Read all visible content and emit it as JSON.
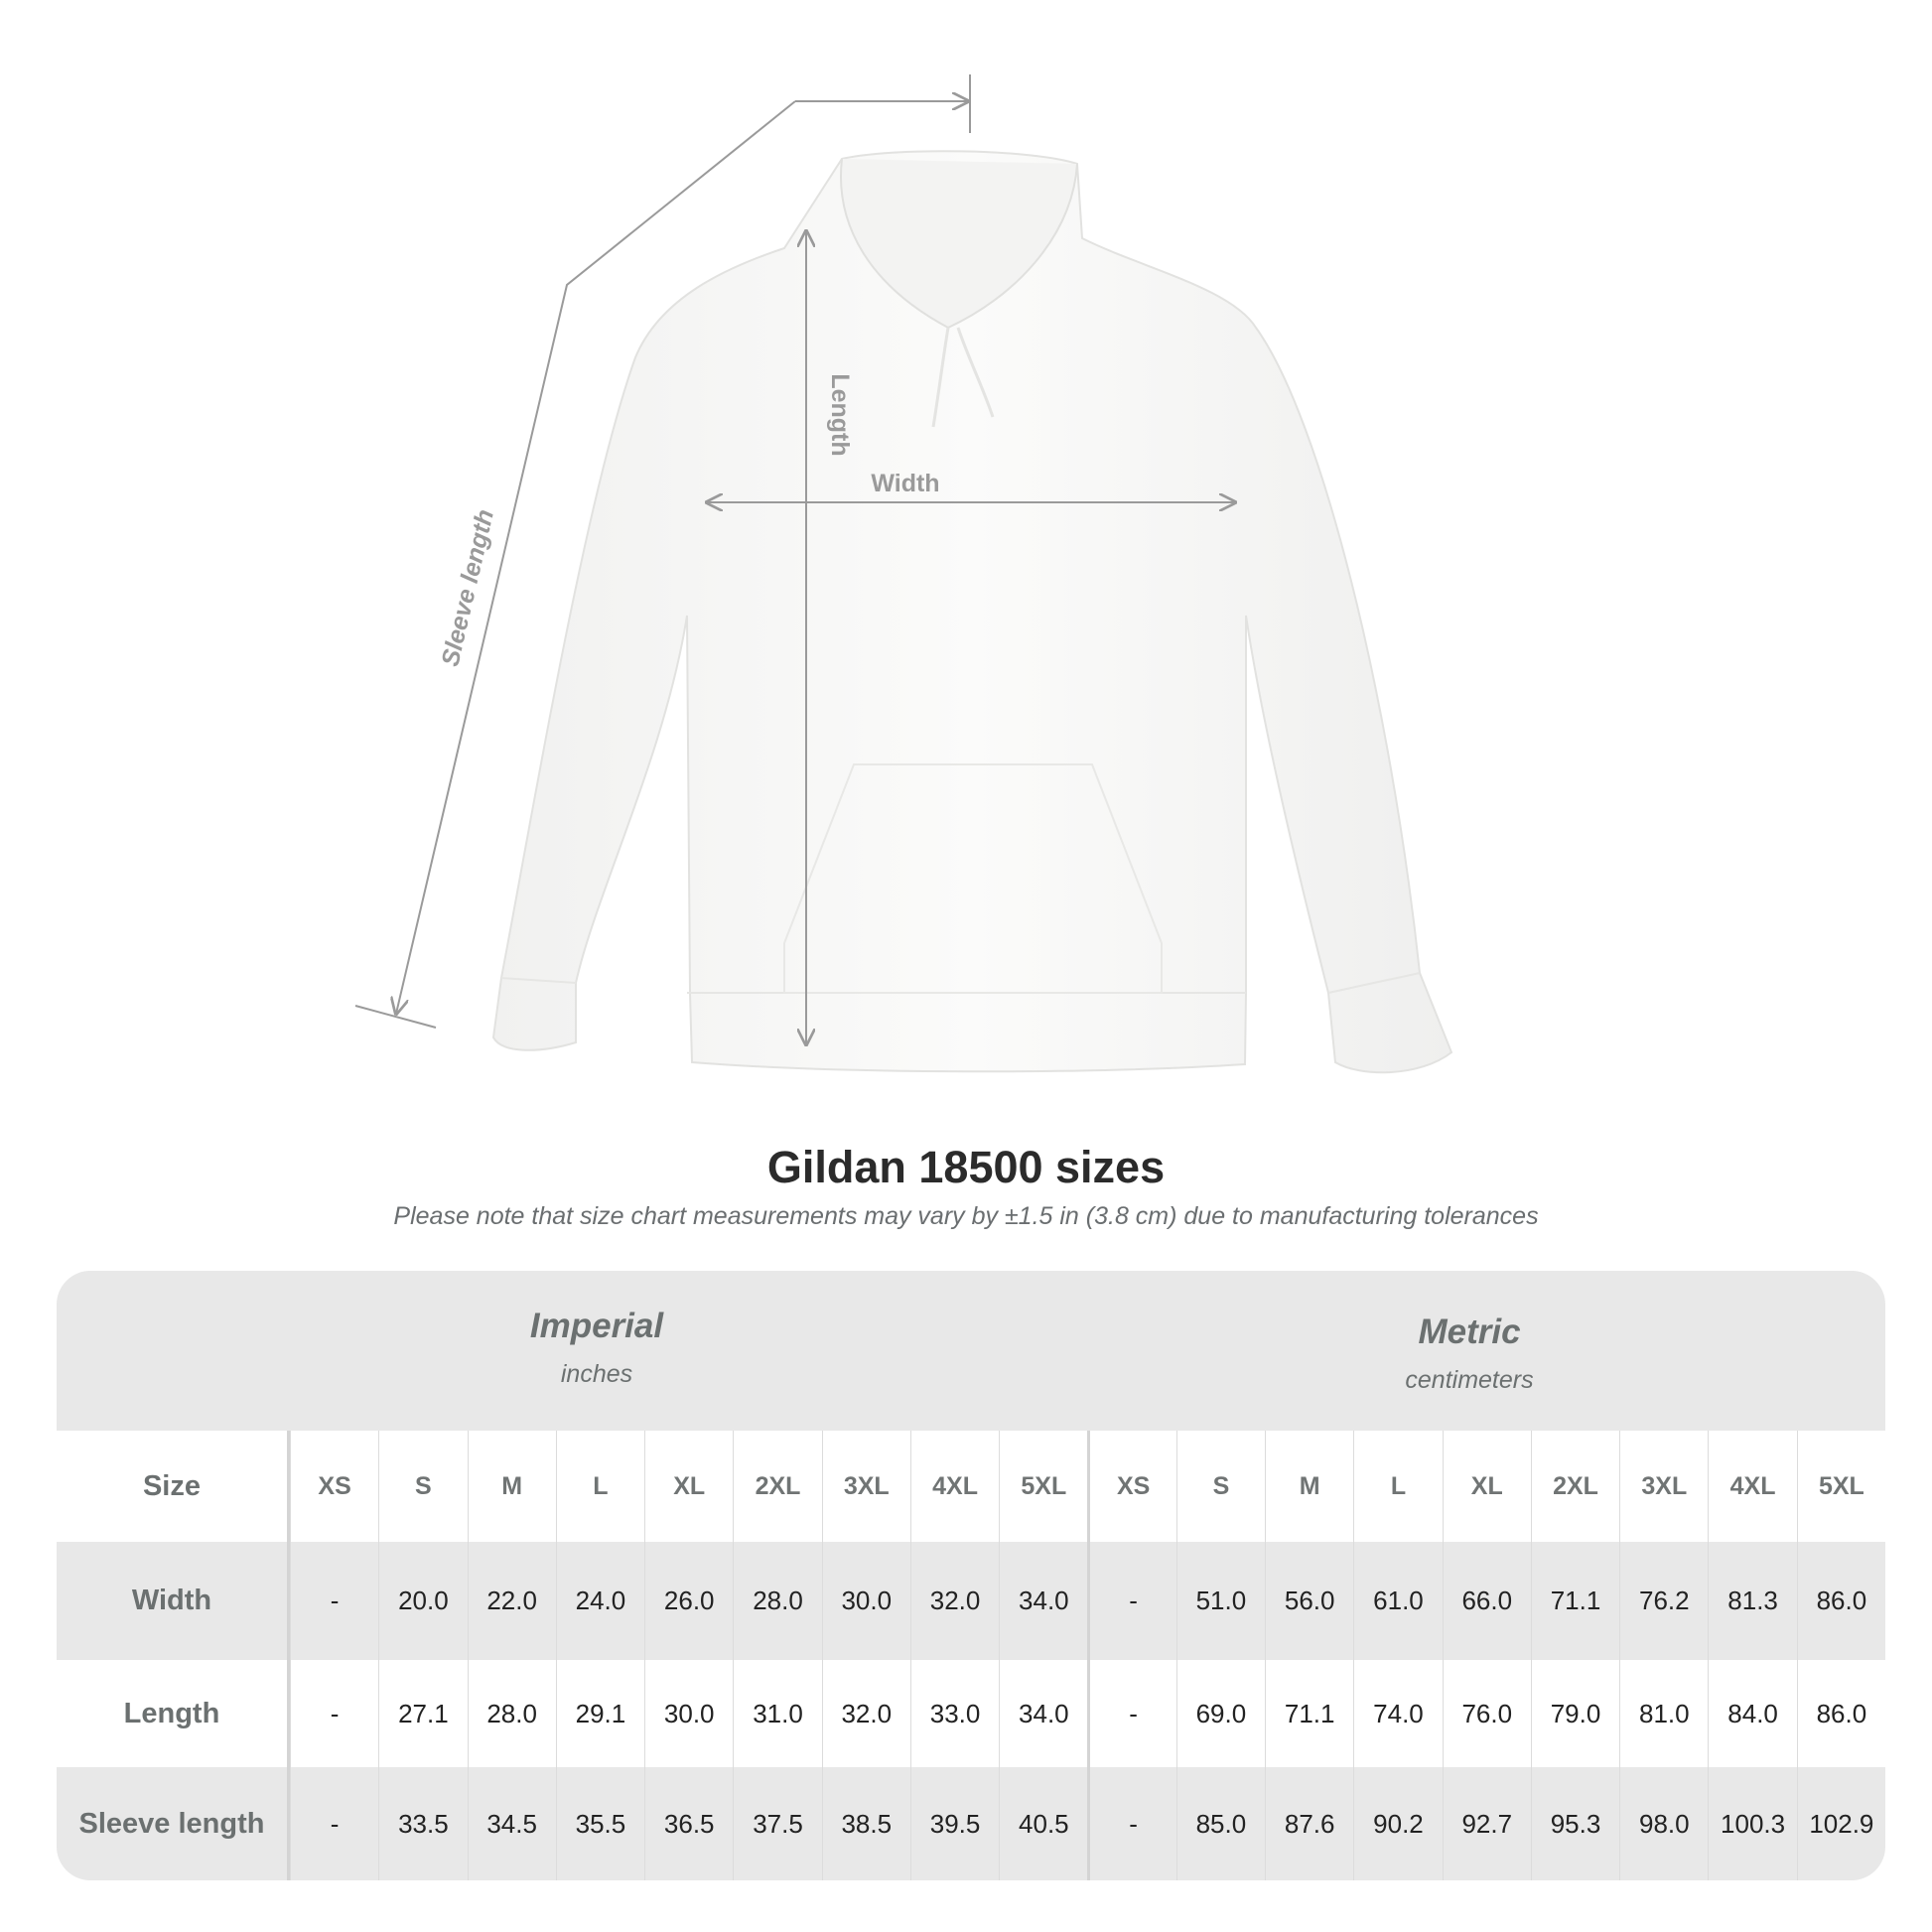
{
  "diagram": {
    "labels": {
      "sleeve_length": "Sleeve length",
      "length": "Length",
      "width": "Width"
    },
    "line_color": "#9a9a9a",
    "garment_color": "#fafafa"
  },
  "title": "Gildan 18500 sizes",
  "subtitle": "Please note that size chart measurements may vary by ±1.5 in (3.8 cm) due to manufacturing tolerances",
  "table": {
    "imperial": {
      "name": "Imperial",
      "unit": "inches"
    },
    "metric": {
      "name": "Metric",
      "unit": "centimeters"
    },
    "size_label": "Size",
    "sizes": [
      "XS",
      "S",
      "M",
      "L",
      "XL",
      "2XL",
      "3XL",
      "4XL",
      "5XL"
    ],
    "rows": [
      {
        "label": "Width",
        "imperial": [
          "-",
          "20.0",
          "22.0",
          "24.0",
          "26.0",
          "28.0",
          "30.0",
          "32.0",
          "34.0"
        ],
        "metric": [
          "-",
          "51.0",
          "56.0",
          "61.0",
          "66.0",
          "71.1",
          "76.2",
          "81.3",
          "86.0"
        ]
      },
      {
        "label": "Length",
        "imperial": [
          "-",
          "27.1",
          "28.0",
          "29.1",
          "30.0",
          "31.0",
          "32.0",
          "33.0",
          "34.0"
        ],
        "metric": [
          "-",
          "69.0",
          "71.1",
          "74.0",
          "76.0",
          "79.0",
          "81.0",
          "84.0",
          "86.0"
        ]
      },
      {
        "label": "Sleeve length",
        "imperial": [
          "-",
          "33.5",
          "34.5",
          "35.5",
          "36.5",
          "37.5",
          "38.5",
          "39.5",
          "40.5"
        ],
        "metric": [
          "-",
          "85.0",
          "87.6",
          "90.2",
          "92.7",
          "95.3",
          "98.0",
          "100.3",
          "102.9"
        ]
      }
    ]
  }
}
